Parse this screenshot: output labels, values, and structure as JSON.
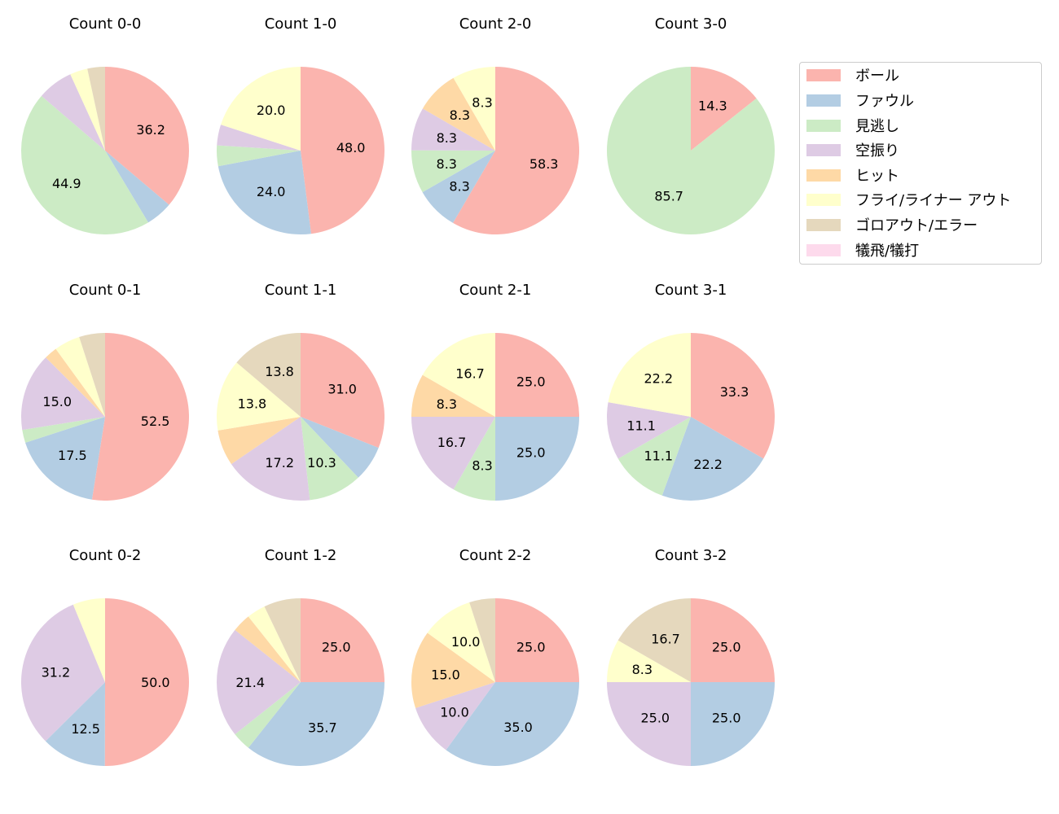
{
  "chart_data": {
    "type": "pie",
    "layout": {
      "rows": 3,
      "cols": 4,
      "startangle": 90,
      "direction": "clockwise",
      "label_format": "%.1f",
      "legend_position": "upper right outside"
    },
    "legend": {
      "entries": [
        "ボール",
        "ファウル",
        "見逃し",
        "空振り",
        "ヒット",
        "フライ/ライナー アウト",
        "ゴロアウト/エラー",
        "犠飛/犠打"
      ],
      "colors": [
        "#fbb4ae",
        "#b3cde3",
        "#ccebc5",
        "#decbe4",
        "#fed9a6",
        "#ffffcc",
        "#e5d8bd",
        "#fddaec"
      ]
    },
    "pies": [
      {
        "title": "Count 0-0",
        "values": [
          36.2,
          5.2,
          44.9,
          6.9,
          0,
          3.4,
          3.4,
          0
        ],
        "labels_shown": [
          "36.2",
          "44.9"
        ]
      },
      {
        "title": "Count 1-0",
        "values": [
          48.0,
          24.0,
          4.0,
          4.0,
          0,
          20.0,
          0,
          0
        ],
        "labels_shown": [
          "48.0",
          "24.0",
          "20.0"
        ]
      },
      {
        "title": "Count 2-0",
        "values": [
          58.3,
          8.3,
          8.3,
          8.3,
          8.3,
          8.3,
          0,
          0
        ],
        "labels_shown": [
          "58.3",
          "8.3",
          "8.3",
          "8.3",
          "8.3",
          "8.3"
        ]
      },
      {
        "title": "Count 3-0",
        "values": [
          14.3,
          0,
          85.7,
          0,
          0,
          0,
          0,
          0
        ],
        "labels_shown": [
          "14.3",
          "85.7"
        ]
      },
      {
        "title": "Count 0-1",
        "values": [
          52.5,
          17.5,
          2.5,
          15.0,
          2.5,
          5.0,
          5.0,
          0
        ],
        "labels_shown": [
          "52.5",
          "17.5",
          "15.0"
        ]
      },
      {
        "title": "Count 1-1",
        "values": [
          31.0,
          6.9,
          10.3,
          17.2,
          6.9,
          13.8,
          13.8,
          0
        ],
        "labels_shown": [
          "31.0",
          "10.3",
          "17.2",
          "13.8",
          "13.8"
        ]
      },
      {
        "title": "Count 2-1",
        "values": [
          25.0,
          25.0,
          8.3,
          16.7,
          8.3,
          16.7,
          0,
          0
        ],
        "labels_shown": [
          "25.0",
          "25.0",
          "8.3",
          "16.7",
          "8.3",
          "16.7"
        ]
      },
      {
        "title": "Count 3-1",
        "values": [
          33.3,
          22.2,
          11.1,
          11.1,
          0,
          22.2,
          0,
          0
        ],
        "labels_shown": [
          "33.3",
          "22.2",
          "11.1",
          "11.1",
          "22.2"
        ]
      },
      {
        "title": "Count 0-2",
        "values": [
          50.0,
          12.5,
          0,
          31.2,
          0,
          6.2,
          0,
          0
        ],
        "labels_shown": [
          "50.0",
          "12.5",
          "31.2"
        ]
      },
      {
        "title": "Count 1-2",
        "values": [
          25.0,
          35.7,
          3.6,
          21.4,
          3.6,
          3.6,
          7.1,
          0
        ],
        "labels_shown": [
          "25.0",
          "35.7",
          "21.4"
        ]
      },
      {
        "title": "Count 2-2",
        "values": [
          25.0,
          35.0,
          0,
          10.0,
          15.0,
          10.0,
          5.0,
          0
        ],
        "labels_shown": [
          "25.0",
          "35.0",
          "10.0",
          "15.0",
          "10.0"
        ]
      },
      {
        "title": "Count 3-2",
        "values": [
          25.0,
          25.0,
          0,
          25.0,
          0,
          8.3,
          16.7,
          0
        ],
        "labels_shown": [
          "25.0",
          "25.0",
          "25.0",
          "8.3",
          "16.7"
        ]
      }
    ]
  }
}
